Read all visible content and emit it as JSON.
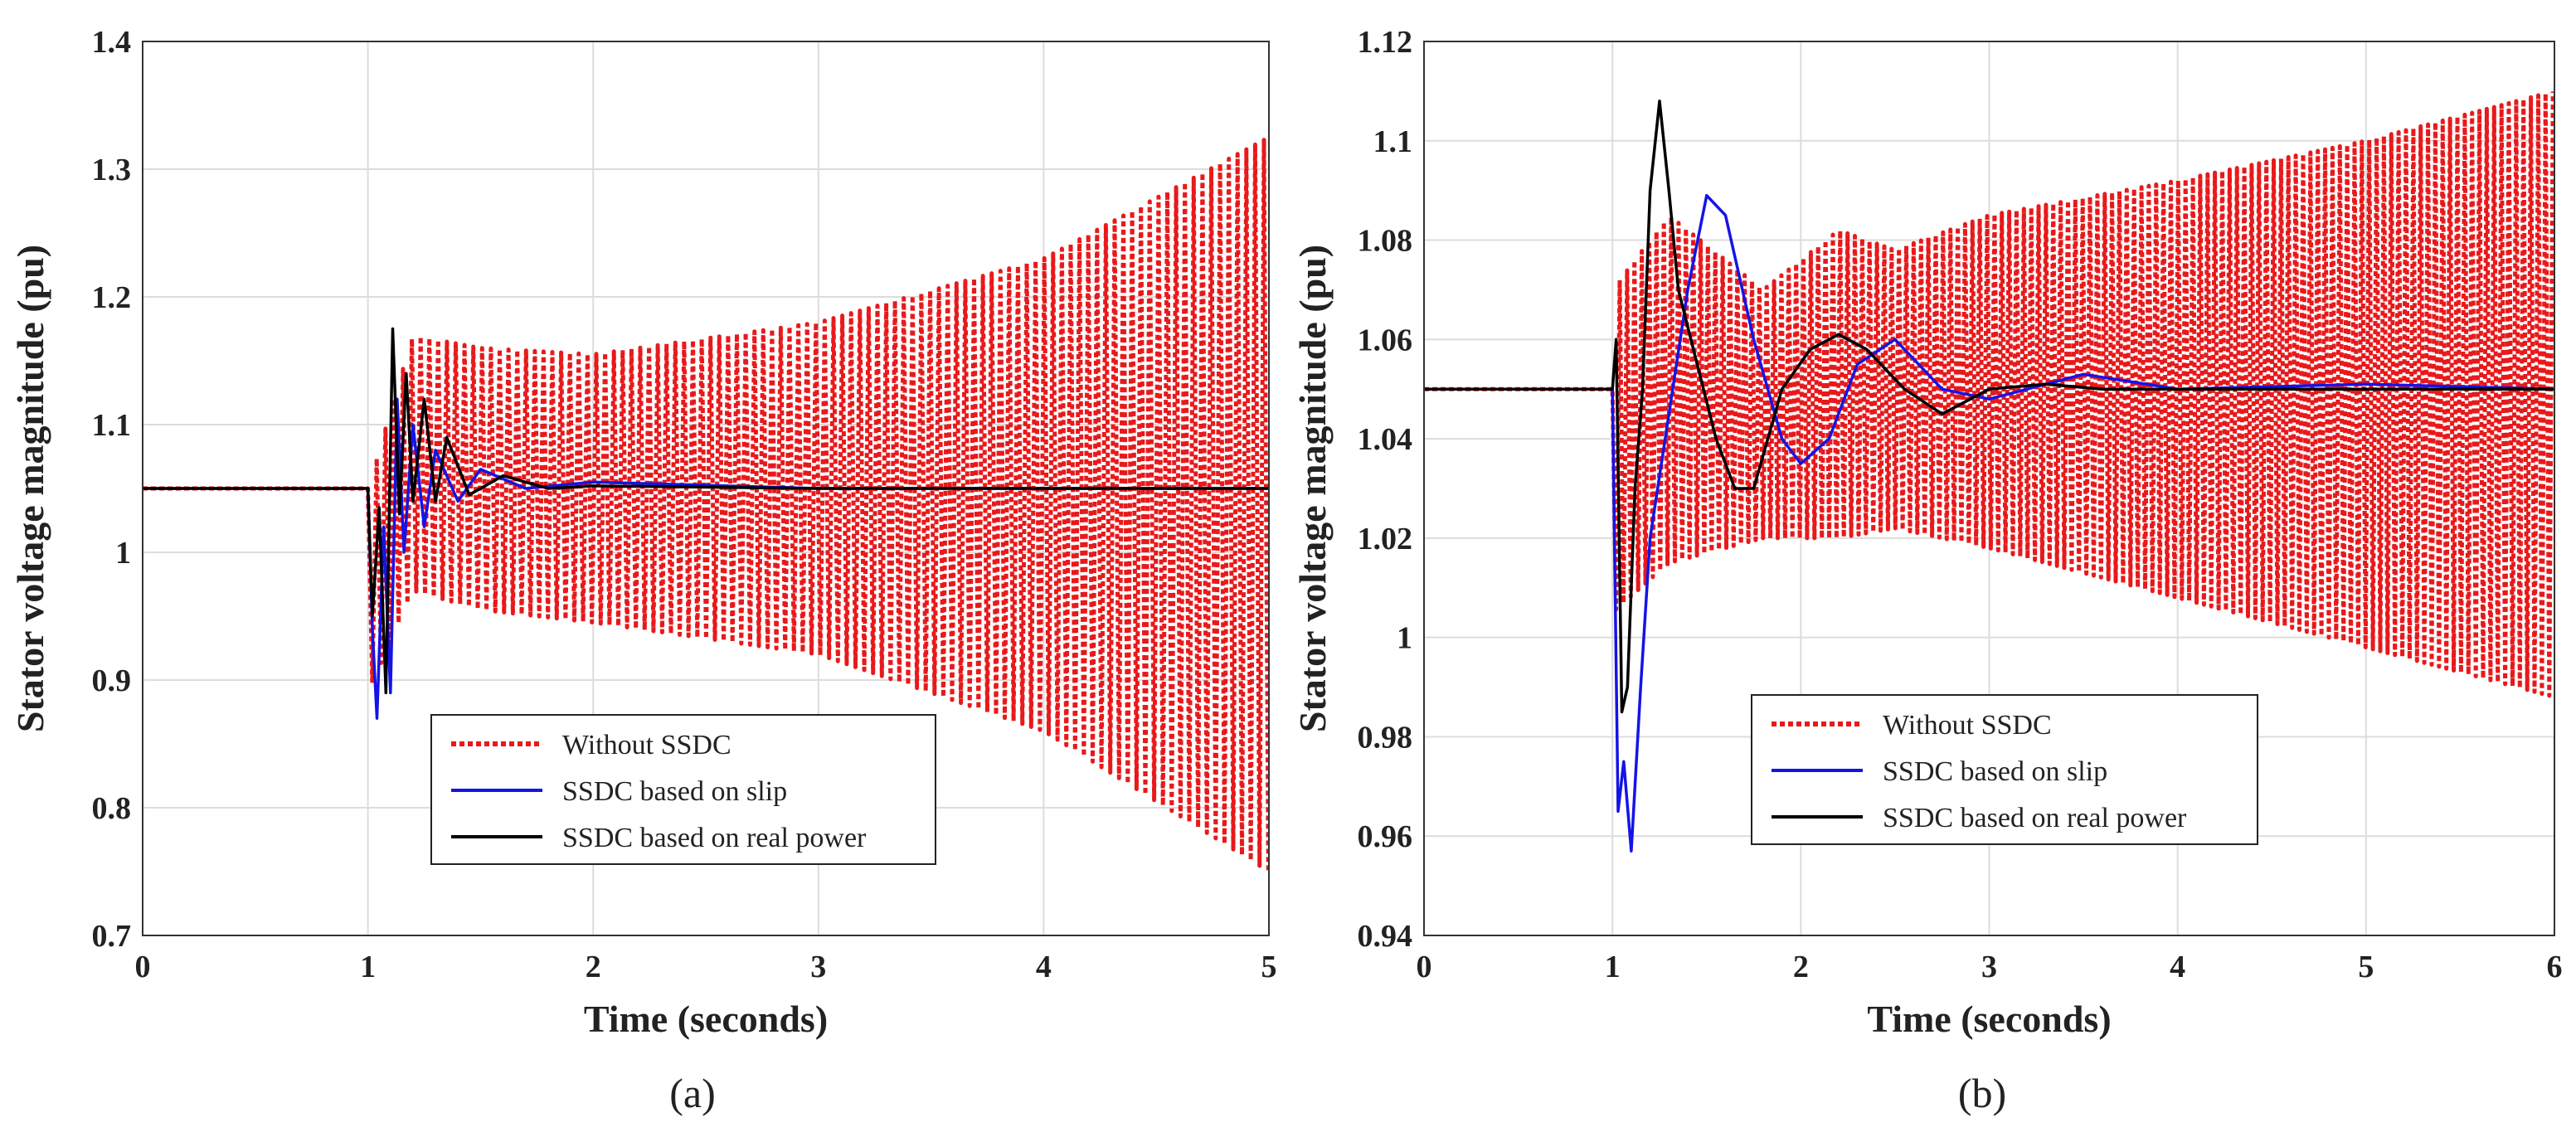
{
  "chart_data": [
    {
      "panel": "(a)",
      "type": "line",
      "xlabel": "Time (seconds)",
      "ylabel": "Stator voltage magnitude (pu)",
      "xlim": [
        0,
        5
      ],
      "ylim": [
        0.7,
        1.4
      ],
      "xticks": [
        "0",
        "1",
        "2",
        "3",
        "4",
        "5"
      ],
      "yticks": [
        "0.7",
        "0.8",
        "0.9",
        "1",
        "1.1",
        "1.2",
        "1.3",
        "1.4"
      ],
      "grid": true,
      "legend_position": "bottom-center",
      "fault_time": 1.0,
      "steady_value": 1.05,
      "series": [
        {
          "name": "Without SSDC",
          "color": "#e8191b",
          "style": "dotted",
          "oscillation_envelope": {
            "t": [
              1.0,
              1.2,
              1.5,
              2.0,
              3.0,
              4.0,
              5.0
            ],
            "upper": [
              1.05,
              1.17,
              1.16,
              1.155,
              1.18,
              1.23,
              1.325
            ],
            "lower": [
              0.89,
              0.97,
              0.955,
              0.945,
              0.92,
              0.86,
              0.75
            ]
          }
        },
        {
          "name": "SSDC based on slip",
          "color": "#1414e6",
          "style": "solid",
          "points": [
            [
              0,
              1.05
            ],
            [
              1.0,
              1.05
            ],
            [
              1.02,
              0.94
            ],
            [
              1.04,
              0.87
            ],
            [
              1.07,
              1.02
            ],
            [
              1.1,
              0.89
            ],
            [
              1.13,
              1.12
            ],
            [
              1.16,
              1.0
            ],
            [
              1.2,
              1.1
            ],
            [
              1.25,
              1.02
            ],
            [
              1.3,
              1.08
            ],
            [
              1.4,
              1.04
            ],
            [
              1.5,
              1.065
            ],
            [
              1.7,
              1.05
            ],
            [
              2.0,
              1.055
            ],
            [
              3.0,
              1.05
            ],
            [
              5.0,
              1.05
            ]
          ]
        },
        {
          "name": "SSDC based on real power",
          "color": "#000000",
          "style": "solid",
          "points": [
            [
              0,
              1.05
            ],
            [
              1.0,
              1.05
            ],
            [
              1.02,
              0.95
            ],
            [
              1.05,
              1.035
            ],
            [
              1.08,
              0.89
            ],
            [
              1.11,
              1.175
            ],
            [
              1.14,
              1.03
            ],
            [
              1.17,
              1.14
            ],
            [
              1.2,
              1.04
            ],
            [
              1.25,
              1.12
            ],
            [
              1.3,
              1.04
            ],
            [
              1.35,
              1.09
            ],
            [
              1.45,
              1.045
            ],
            [
              1.6,
              1.06
            ],
            [
              1.8,
              1.05
            ],
            [
              2.0,
              1.052
            ],
            [
              3.0,
              1.05
            ],
            [
              5.0,
              1.05
            ]
          ]
        }
      ],
      "caption": "(a)"
    },
    {
      "panel": "(b)",
      "type": "line",
      "xlabel": "Time (seconds)",
      "ylabel": "Stator voltage magnitude (pu)",
      "xlim": [
        0,
        6
      ],
      "ylim": [
        0.94,
        1.12
      ],
      "xticks": [
        "0",
        "1",
        "2",
        "3",
        "4",
        "5",
        "6"
      ],
      "yticks": [
        "0.94",
        "0.96",
        "0.98",
        "1",
        "1.02",
        "1.04",
        "1.06",
        "1.08",
        "1.1",
        "1.12"
      ],
      "grid": true,
      "legend_position": "bottom-center",
      "fault_time": 1.0,
      "steady_value": 1.05,
      "series": [
        {
          "name": "Without SSDC",
          "color": "#e8191b",
          "style": "dotted",
          "oscillation_envelope": {
            "t": [
              1.0,
              1.3,
              1.8,
              2.2,
              2.5,
              3.0,
              4.0,
              5.0,
              6.0
            ],
            "upper": [
              1.07,
              1.085,
              1.07,
              1.082,
              1.078,
              1.085,
              1.092,
              1.1,
              1.11
            ],
            "lower": [
              1.005,
              1.015,
              1.02,
              1.02,
              1.022,
              1.018,
              1.008,
              0.998,
              0.988
            ]
          }
        },
        {
          "name": "SSDC based on slip",
          "color": "#1414e6",
          "style": "solid",
          "points": [
            [
              0,
              1.05
            ],
            [
              1.0,
              1.05
            ],
            [
              1.03,
              0.965
            ],
            [
              1.06,
              0.975
            ],
            [
              1.1,
              0.957
            ],
            [
              1.15,
              0.99
            ],
            [
              1.2,
              1.02
            ],
            [
              1.3,
              1.045
            ],
            [
              1.4,
              1.07
            ],
            [
              1.5,
              1.089
            ],
            [
              1.6,
              1.085
            ],
            [
              1.75,
              1.06
            ],
            [
              1.9,
              1.04
            ],
            [
              2.0,
              1.035
            ],
            [
              2.15,
              1.04
            ],
            [
              2.3,
              1.055
            ],
            [
              2.5,
              1.06
            ],
            [
              2.75,
              1.05
            ],
            [
              3.0,
              1.048
            ],
            [
              3.5,
              1.053
            ],
            [
              4.0,
              1.05
            ],
            [
              5.0,
              1.051
            ],
            [
              6.0,
              1.05
            ]
          ]
        },
        {
          "name": "SSDC based on real power",
          "color": "#000000",
          "style": "solid",
          "points": [
            [
              0,
              1.05
            ],
            [
              1.0,
              1.05
            ],
            [
              1.02,
              1.06
            ],
            [
              1.05,
              0.985
            ],
            [
              1.08,
              0.99
            ],
            [
              1.12,
              1.03
            ],
            [
              1.16,
              1.05
            ],
            [
              1.2,
              1.09
            ],
            [
              1.25,
              1.108
            ],
            [
              1.3,
              1.09
            ],
            [
              1.35,
              1.07
            ],
            [
              1.45,
              1.055
            ],
            [
              1.55,
              1.04
            ],
            [
              1.65,
              1.03
            ],
            [
              1.75,
              1.03
            ],
            [
              1.9,
              1.05
            ],
            [
              2.05,
              1.058
            ],
            [
              2.2,
              1.061
            ],
            [
              2.35,
              1.058
            ],
            [
              2.55,
              1.05
            ],
            [
              2.75,
              1.045
            ],
            [
              3.0,
              1.05
            ],
            [
              3.3,
              1.051
            ],
            [
              3.6,
              1.05
            ],
            [
              4.0,
              1.05
            ],
            [
              6.0,
              1.05
            ]
          ]
        }
      ],
      "caption": "(b)"
    }
  ]
}
